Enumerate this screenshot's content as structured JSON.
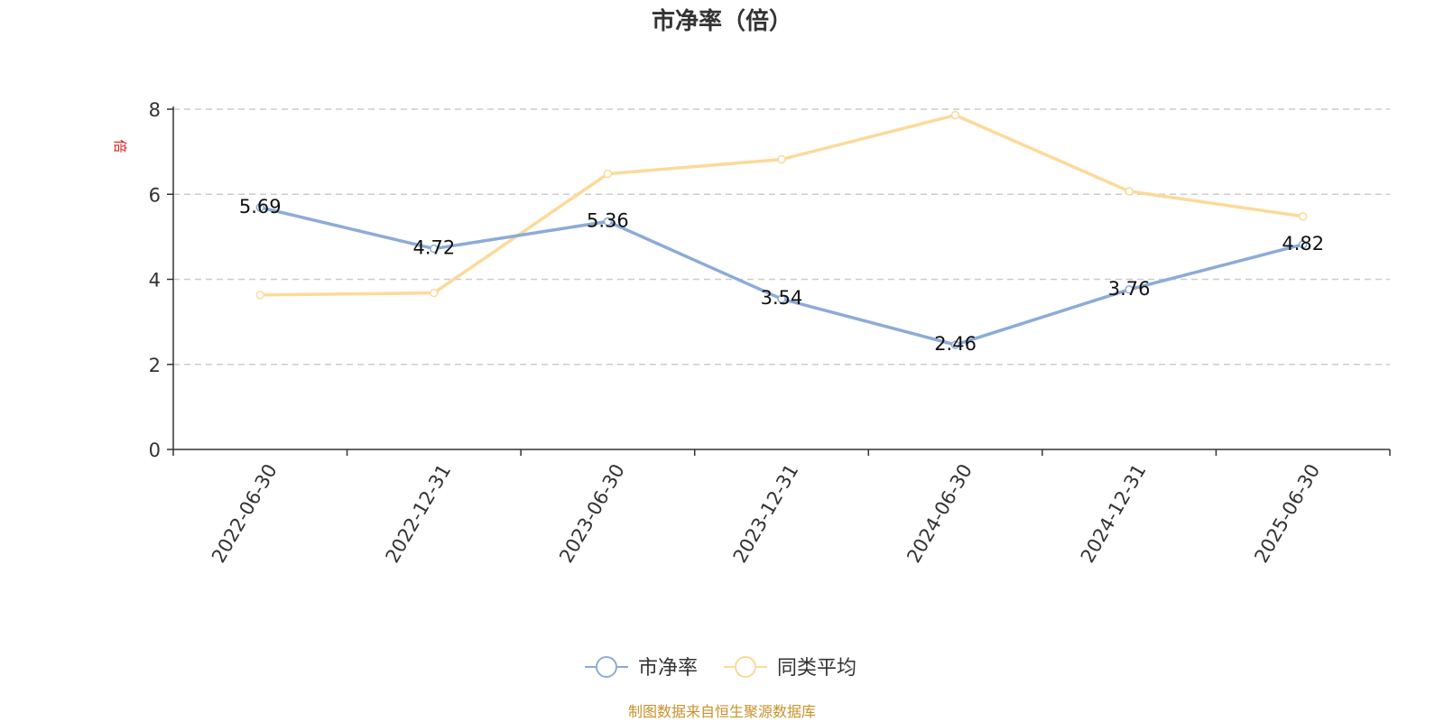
{
  "chart_data": {
    "type": "line",
    "title": "市净率（倍）",
    "ylabel": "倍",
    "ylim": [
      0,
      8
    ],
    "yticks": [
      0,
      2,
      4,
      6,
      8
    ],
    "grid": true,
    "legend_position": "bottom",
    "categories": [
      "2022-06-30",
      "2022-12-31",
      "2023-06-30",
      "2023-12-31",
      "2024-06-30",
      "2024-12-31",
      "2025-06-30"
    ],
    "series": [
      {
        "name": "市净率",
        "color": "#8dabd8",
        "values": [
          5.69,
          4.72,
          5.36,
          3.54,
          2.46,
          3.76,
          4.82
        ],
        "labels": [
          "5.69",
          "4.72",
          "5.36",
          "3.54",
          "2.46",
          "3.76",
          "4.82"
        ]
      },
      {
        "name": "同类平均",
        "color": "#fdd99a",
        "values": [
          3.63,
          3.68,
          6.48,
          6.82,
          7.86,
          6.07,
          5.48
        ]
      }
    ]
  },
  "source_note": "制图数据来自恒生聚源数据库",
  "colors": {
    "axis": "#333333",
    "grid": "#cccccc",
    "unit_label": "#e02020",
    "source": "#c8922a"
  }
}
